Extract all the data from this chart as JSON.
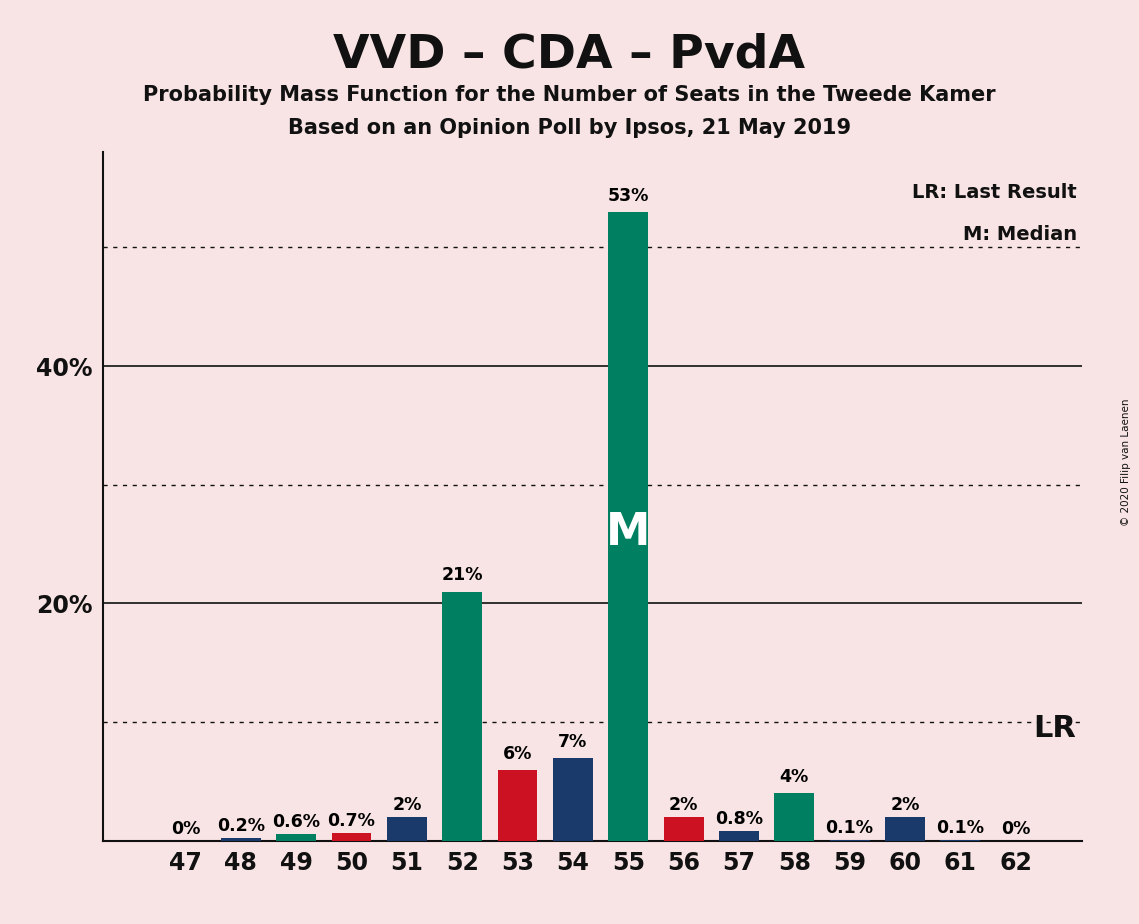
{
  "title": "VVD – CDA – PvdA",
  "subtitle1": "Probability Mass Function for the Number of Seats in the Tweede Kamer",
  "subtitle2": "Based on an Opinion Poll by Ipsos, 21 May 2019",
  "copyright": "© 2020 Filip van Laenen",
  "seats": [
    47,
    48,
    49,
    50,
    51,
    52,
    53,
    54,
    55,
    56,
    57,
    58,
    59,
    60,
    61,
    62
  ],
  "values": [
    0.0,
    0.2,
    0.6,
    0.7,
    2.0,
    21.0,
    6.0,
    7.0,
    53.0,
    2.0,
    0.8,
    4.0,
    0.1,
    2.0,
    0.1,
    0.0
  ],
  "labels": [
    "0%",
    "0.2%",
    "0.6%",
    "0.7%",
    "2%",
    "21%",
    "6%",
    "7%",
    "53%",
    "2%",
    "0.8%",
    "4%",
    "0.1%",
    "2%",
    "0.1%",
    "0%"
  ],
  "colors": {
    "47": "#1a3a6b",
    "48": "#1a3a6b",
    "49": "#008060",
    "50": "#cc1122",
    "51": "#1a3a6b",
    "52": "#008060",
    "53": "#cc1122",
    "54": "#1a3a6b",
    "55": "#008060",
    "56": "#cc1122",
    "57": "#1a3a6b",
    "58": "#008060",
    "59": "#1a3a6b",
    "60": "#1a3a6b",
    "61": "#1a3a6b",
    "62": "#1a3a6b"
  },
  "median_seat": 55,
  "lr_seat": 60,
  "background_color": "#f8e4e4",
  "ymax": 58,
  "dotted_gridlines": [
    10,
    30,
    50
  ],
  "solid_gridlines": [
    20,
    40
  ],
  "ytick_positions": [
    20,
    40
  ],
  "ytick_labels": [
    "20%",
    "40%"
  ],
  "legend_lr": "LR: Last Result",
  "legend_m": "M: Median",
  "lr_label": "LR",
  "m_label": "M",
  "bar_width": 0.72
}
